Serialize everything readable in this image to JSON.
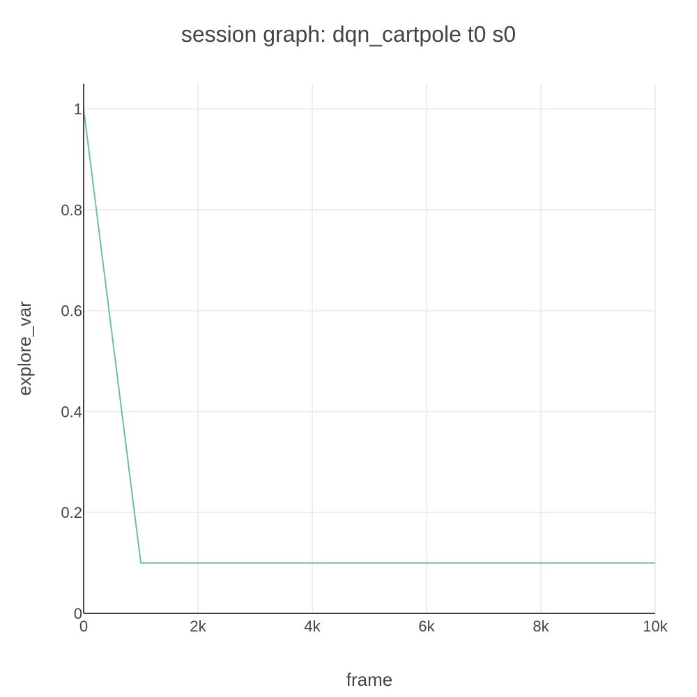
{
  "chart_data": {
    "type": "line",
    "title": "session graph: dqn_cartpole t0 s0",
    "xlabel": "frame",
    "ylabel": "explore_var",
    "xlim": [
      0,
      10000
    ],
    "ylim": [
      0,
      1.05
    ],
    "grid": true,
    "x_ticks": [
      {
        "value": 0,
        "label": "0"
      },
      {
        "value": 2000,
        "label": "2k"
      },
      {
        "value": 4000,
        "label": "4k"
      },
      {
        "value": 6000,
        "label": "6k"
      },
      {
        "value": 8000,
        "label": "8k"
      },
      {
        "value": 10000,
        "label": "10k"
      }
    ],
    "y_ticks": [
      {
        "value": 0,
        "label": "0"
      },
      {
        "value": 0.2,
        "label": "0.2"
      },
      {
        "value": 0.4,
        "label": "0.4"
      },
      {
        "value": 0.6,
        "label": "0.6"
      },
      {
        "value": 0.8,
        "label": "0.8"
      },
      {
        "value": 1,
        "label": "1"
      }
    ],
    "series": [
      {
        "color": "#66c2a5",
        "x": [
          0,
          1000,
          10000
        ],
        "y": [
          1.0,
          0.1,
          0.1
        ]
      }
    ]
  }
}
